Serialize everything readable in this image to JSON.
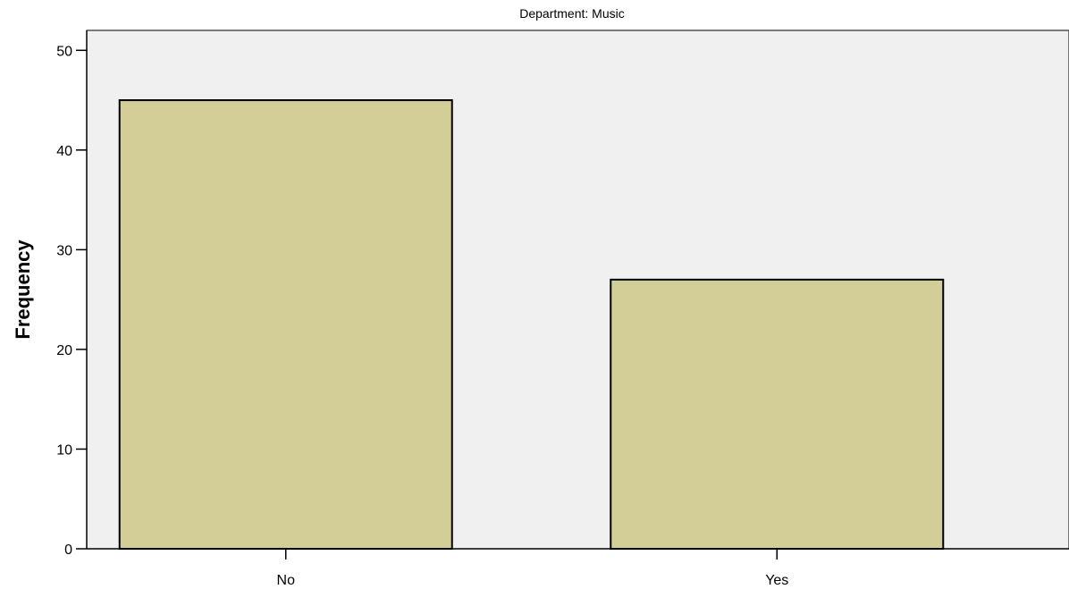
{
  "chart_data": {
    "type": "bar",
    "title": "Department: Music",
    "xlabel": "",
    "ylabel": "Frequency",
    "categories": [
      "No",
      "Yes"
    ],
    "values": [
      45,
      27
    ],
    "ylim": [
      0,
      52
    ],
    "yticks": [
      0,
      10,
      20,
      30,
      40,
      50
    ],
    "grid": false,
    "legend": "none"
  },
  "colors": {
    "plot_background": "#f0f0f0",
    "bar_fill": "#d3cd98",
    "bar_stroke": "#000000"
  }
}
